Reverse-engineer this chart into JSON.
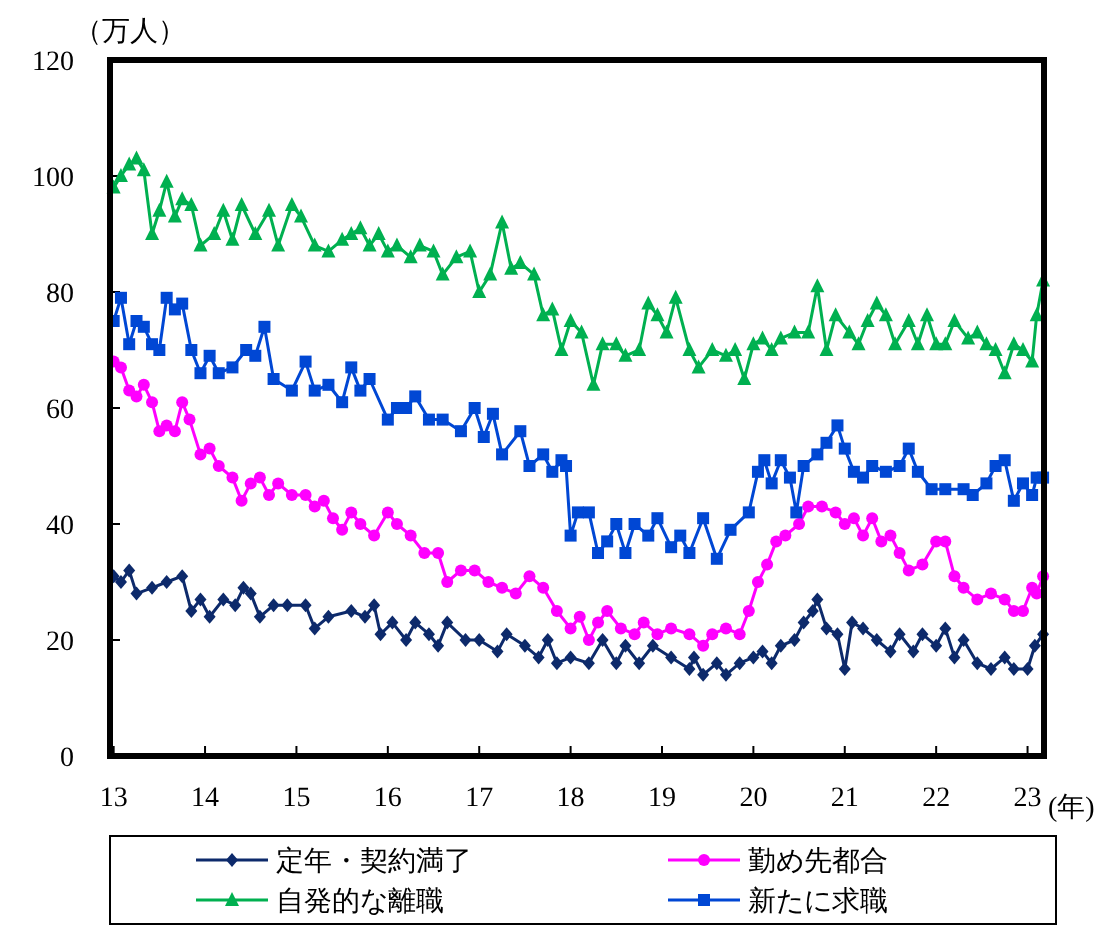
{
  "chart_data": {
    "type": "line",
    "ylabel": "（万人）",
    "xlabel": "(年)",
    "xlim": [
      12.96,
      23.18
    ],
    "ylim": [
      0,
      120
    ],
    "xticks": [
      13,
      14,
      15,
      16,
      17,
      18,
      19,
      20,
      21,
      22,
      23
    ],
    "yticks": [
      0,
      20,
      40,
      60,
      80,
      100,
      120
    ],
    "grid": false,
    "legend": "bottom",
    "line_style": "solid",
    "series": [
      {
        "name": "定年・契約満了",
        "color": "#0d2a6b",
        "marker": "diamond",
        "x": [
          13.0,
          13.08,
          13.17,
          13.25,
          13.42,
          13.58,
          13.75,
          13.85,
          13.95,
          14.05,
          14.2,
          14.33,
          14.42,
          14.5,
          14.6,
          14.75,
          14.9,
          15.1,
          15.2,
          15.35,
          15.6,
          15.75,
          15.85,
          15.92,
          16.05,
          16.2,
          16.3,
          16.45,
          16.55,
          16.65,
          16.85,
          17.0,
          17.2,
          17.3,
          17.5,
          17.65,
          17.75,
          17.85,
          18.0,
          18.2,
          18.35,
          18.5,
          18.6,
          18.75,
          18.9,
          19.1,
          19.3,
          19.35,
          19.45,
          19.6,
          19.7,
          19.85,
          20.0,
          20.1,
          20.2,
          20.3,
          20.45,
          20.55,
          20.65,
          20.7,
          20.8,
          20.92,
          21.0,
          21.08,
          21.2,
          21.35,
          21.5,
          21.6,
          21.75,
          21.85,
          22.0,
          22.1,
          22.2,
          22.3,
          22.45,
          22.6,
          22.75,
          22.85,
          23.0,
          23.08,
          23.17
        ],
        "values": [
          31,
          30,
          32,
          28,
          29,
          30,
          31,
          25,
          27,
          24,
          27,
          26,
          29,
          28,
          24,
          26,
          26,
          26,
          22,
          24,
          25,
          24,
          26,
          21,
          23,
          20,
          23,
          21,
          19,
          23,
          20,
          20,
          18,
          21,
          19,
          17,
          20,
          16,
          17,
          16,
          20,
          16,
          19,
          16,
          19,
          17,
          15,
          17,
          14,
          16,
          14,
          16,
          17,
          18,
          16,
          19,
          20,
          23,
          25,
          27,
          22,
          21,
          15,
          23,
          22,
          20,
          18,
          21,
          18,
          21,
          19,
          22,
          17,
          20,
          16,
          15,
          17,
          15,
          15,
          19,
          21
        ]
      },
      {
        "name": "勤め先都合",
        "color": "#ff00ff",
        "marker": "circle",
        "x": [
          13.0,
          13.08,
          13.17,
          13.25,
          13.33,
          13.42,
          13.5,
          13.58,
          13.67,
          13.75,
          13.83,
          13.95,
          14.05,
          14.15,
          14.3,
          14.4,
          14.5,
          14.6,
          14.7,
          14.8,
          14.95,
          15.1,
          15.2,
          15.3,
          15.4,
          15.5,
          15.6,
          15.7,
          15.85,
          16.0,
          16.1,
          16.25,
          16.4,
          16.55,
          16.65,
          16.8,
          16.95,
          17.1,
          17.25,
          17.4,
          17.55,
          17.7,
          17.85,
          18.0,
          18.1,
          18.2,
          18.3,
          18.4,
          18.55,
          18.7,
          18.8,
          18.95,
          19.1,
          19.3,
          19.45,
          19.55,
          19.7,
          19.85,
          19.95,
          20.05,
          20.15,
          20.25,
          20.35,
          20.5,
          20.6,
          20.75,
          20.9,
          21.0,
          21.1,
          21.2,
          21.3,
          21.4,
          21.5,
          21.6,
          21.7,
          21.85,
          22.0,
          22.1,
          22.2,
          22.3,
          22.45,
          22.6,
          22.75,
          22.85,
          22.95,
          23.05,
          23.1,
          23.17
        ],
        "values": [
          68,
          67,
          63,
          62,
          64,
          61,
          56,
          57,
          56,
          61,
          58,
          52,
          53,
          50,
          48,
          44,
          47,
          48,
          45,
          47,
          45,
          45,
          43,
          44,
          41,
          39,
          42,
          40,
          38,
          42,
          40,
          38,
          35,
          35,
          30,
          32,
          32,
          30,
          29,
          28,
          31,
          29,
          25,
          22,
          24,
          20,
          23,
          25,
          22,
          21,
          23,
          21,
          22,
          21,
          19,
          21,
          22,
          21,
          25,
          30,
          33,
          37,
          38,
          40,
          43,
          43,
          42,
          40,
          41,
          38,
          41,
          37,
          38,
          35,
          32,
          33,
          37,
          37,
          31,
          29,
          27,
          28,
          27,
          25,
          25,
          29,
          28,
          31
        ]
      },
      {
        "name": "自発的な離職",
        "color": "#00b050",
        "marker": "triangle",
        "x": [
          13.0,
          13.08,
          13.17,
          13.25,
          13.33,
          13.42,
          13.5,
          13.58,
          13.67,
          13.75,
          13.85,
          13.95,
          14.1,
          14.2,
          14.3,
          14.4,
          14.55,
          14.7,
          14.8,
          14.95,
          15.05,
          15.2,
          15.35,
          15.5,
          15.6,
          15.7,
          15.8,
          15.9,
          16.0,
          16.1,
          16.25,
          16.35,
          16.5,
          16.6,
          16.75,
          16.9,
          17.0,
          17.12,
          17.25,
          17.35,
          17.45,
          17.6,
          17.7,
          17.8,
          17.9,
          18.0,
          18.12,
          18.25,
          18.35,
          18.5,
          18.6,
          18.75,
          18.85,
          18.95,
          19.05,
          19.15,
          19.3,
          19.4,
          19.55,
          19.7,
          19.8,
          19.9,
          20.0,
          20.1,
          20.2,
          20.3,
          20.45,
          20.6,
          20.7,
          20.8,
          20.9,
          21.05,
          21.15,
          21.25,
          21.35,
          21.45,
          21.55,
          21.7,
          21.8,
          21.9,
          22.0,
          22.1,
          22.2,
          22.35,
          22.45,
          22.55,
          22.65,
          22.75,
          22.85,
          22.95,
          23.05,
          23.1,
          23.17
        ],
        "values": [
          98,
          100,
          102,
          103,
          101,
          90,
          94,
          99,
          93,
          96,
          95,
          88,
          90,
          94,
          89,
          95,
          90,
          94,
          88,
          95,
          93,
          88,
          87,
          89,
          90,
          91,
          88,
          90,
          87,
          88,
          86,
          88,
          87,
          83,
          86,
          87,
          80,
          83,
          92,
          84,
          85,
          83,
          76,
          77,
          70,
          75,
          73,
          64,
          71,
          71,
          69,
          70,
          78,
          76,
          73,
          79,
          70,
          67,
          70,
          69,
          70,
          65,
          71,
          72,
          70,
          72,
          73,
          73,
          81,
          70,
          76,
          73,
          71,
          75,
          78,
          76,
          71,
          75,
          71,
          76,
          71,
          71,
          75,
          72,
          73,
          71,
          70,
          66,
          71,
          70,
          68,
          76,
          82
        ]
      },
      {
        "name": "新たに求職",
        "color": "#0047d4",
        "marker": "square",
        "x": [
          13.0,
          13.08,
          13.17,
          13.25,
          13.33,
          13.42,
          13.5,
          13.58,
          13.67,
          13.75,
          13.85,
          13.95,
          14.05,
          14.15,
          14.3,
          14.45,
          14.55,
          14.65,
          14.75,
          14.95,
          15.1,
          15.2,
          15.35,
          15.5,
          15.6,
          15.7,
          15.8,
          16.0,
          16.1,
          16.2,
          16.3,
          16.45,
          16.6,
          16.8,
          16.95,
          17.05,
          17.15,
          17.25,
          17.45,
          17.55,
          17.7,
          17.8,
          17.9,
          17.95,
          18.0,
          18.08,
          18.2,
          18.3,
          18.4,
          18.5,
          18.6,
          18.7,
          18.85,
          18.95,
          19.1,
          19.2,
          19.3,
          19.45,
          19.6,
          19.75,
          19.95,
          20.05,
          20.12,
          20.2,
          20.3,
          20.4,
          20.47,
          20.55,
          20.7,
          20.8,
          20.92,
          21.0,
          21.1,
          21.2,
          21.3,
          21.45,
          21.6,
          21.7,
          21.8,
          21.95,
          22.1,
          22.3,
          22.4,
          22.55,
          22.65,
          22.75,
          22.85,
          22.95,
          23.05,
          23.1,
          23.17
        ],
        "values": [
          75,
          79,
          71,
          75,
          74,
          71,
          70,
          79,
          77,
          78,
          70,
          66,
          69,
          66,
          67,
          70,
          69,
          74,
          65,
          63,
          68,
          63,
          64,
          61,
          67,
          63,
          65,
          58,
          60,
          60,
          62,
          58,
          58,
          56,
          60,
          55,
          59,
          52,
          56,
          50,
          52,
          49,
          51,
          50,
          38,
          42,
          42,
          35,
          37,
          40,
          35,
          40,
          38,
          41,
          36,
          38,
          35,
          41,
          34,
          39,
          42,
          49,
          51,
          47,
          51,
          48,
          42,
          50,
          52,
          54,
          57,
          53,
          49,
          48,
          50,
          49,
          50,
          53,
          49,
          46,
          46,
          46,
          45,
          47,
          50,
          51,
          44,
          47,
          45,
          48,
          48
        ]
      }
    ]
  }
}
